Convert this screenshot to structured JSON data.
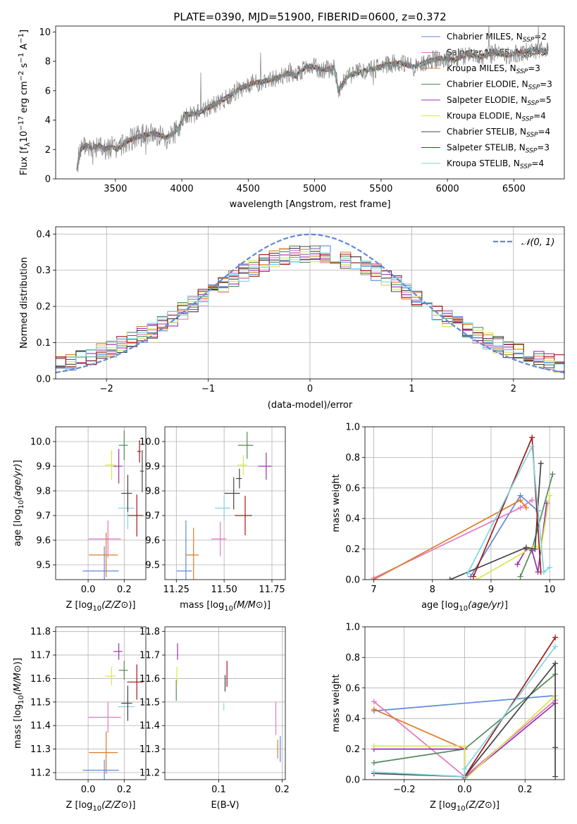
{
  "figure": {
    "title": "PLATE=0390, MJD=51900, FIBERID=0600, z=0.372"
  },
  "model_colors": {
    "Chabrier MILES": "#5f8ad7",
    "Salpeter MILES": "#e377c2",
    "Kroupa MILES": "#e07b25",
    "Chabrier ELODIE": "#548a5c",
    "Salpeter ELODIE": "#9b30b0",
    "Kroupa ELODIE": "#d8e650",
    "Chabrier STELIB": "#444444",
    "Salpeter STELIB": "#a01818",
    "Kroupa STELIB": "#7fd6e0",
    "data": "#808080",
    "normal": "#5f8ad7"
  },
  "chart_data": [
    {
      "type": "line",
      "panel": "spectrum",
      "xlabel": "wavelength [Angstrom, rest frame]",
      "ylabel": "Flux [f",
      "xlim": [
        3050,
        6880
      ],
      "ylim": [
        0,
        10.4
      ],
      "xticks": [
        "3500",
        "4000",
        "4500",
        "5000",
        "5500",
        "6000",
        "6500"
      ],
      "yticks": [
        "0",
        "2",
        "4",
        "6",
        "8",
        "10"
      ],
      "grid": false,
      "legend_position": "upper-right",
      "continuum_x": [
        3200,
        3230,
        3280,
        3320,
        3350,
        3380,
        3420,
        3470,
        3520,
        3570,
        3620,
        3680,
        3730,
        3780,
        3830,
        3880,
        3940,
        3980,
        4020,
        4080,
        4150,
        4230,
        4300,
        4380,
        4450,
        4530,
        4600,
        4700,
        4800,
        4860,
        4940,
        5000,
        5080,
        5150,
        5180,
        5250,
        5350,
        5450,
        5550,
        5650,
        5750,
        5850,
        5950,
        6050,
        6150,
        6250,
        6350,
        6450,
        6550,
        6650,
        6750
      ],
      "continuum_y": [
        0.05,
        1.9,
        2.3,
        2.1,
        2.2,
        2.3,
        2.0,
        2.2,
        2.0,
        2.5,
        2.7,
        2.9,
        3.0,
        3.1,
        3.0,
        2.8,
        3.1,
        3.5,
        4.4,
        4.4,
        4.6,
        5.0,
        5.3,
        5.8,
        6.2,
        6.5,
        6.6,
        6.8,
        7.2,
        7.0,
        7.7,
        7.6,
        7.4,
        7.6,
        6.0,
        7.0,
        7.3,
        7.5,
        7.8,
        7.9,
        7.6,
        8.0,
        8.2,
        8.1,
        8.5,
        8.3,
        8.6,
        8.4,
        8.6,
        8.8,
        8.7
      ],
      "series": [
        {
          "name": "Chabrier MILES",
          "nssp": "=2"
        },
        {
          "name": "Salpeter MILES",
          "nssp": "=3"
        },
        {
          "name": "Kroupa MILES",
          "nssp": "=3"
        },
        {
          "name": "Chabrier ELODIE",
          "nssp": "=3"
        },
        {
          "name": "Salpeter ELODIE",
          "nssp": "=5"
        },
        {
          "name": "Kroupa ELODIE",
          "nssp": "=4"
        },
        {
          "name": "Chabrier STELIB",
          "nssp": "=4"
        },
        {
          "name": "Salpeter STELIB",
          "nssp": "=3"
        },
        {
          "name": "Kroupa STELIB",
          "nssp": "=4"
        }
      ]
    },
    {
      "type": "histogram",
      "panel": "residuals",
      "xlabel": "(data-model)/error",
      "ylabel": "Normed distribution",
      "xlim": [
        -2.5,
        2.5
      ],
      "ylim": [
        0,
        0.42
      ],
      "xticks": [
        "−2",
        "−1",
        "0",
        "1",
        "2"
      ],
      "yticks": [
        "0.0",
        "0.1",
        "0.2",
        "0.3",
        "0.4"
      ],
      "grid": true,
      "legend_position": "upper-right",
      "curve_label": "𝒩(0, 1)",
      "bin_width": 0.1
    },
    {
      "type": "scatter",
      "panel": "age-vs-Z",
      "xlabel": "Z [log",
      "ylabel": "age  [log",
      "xlim": [
        -0.18,
        0.32
      ],
      "ylim": [
        9.44,
        10.06
      ],
      "xticks": [
        "0.0",
        "0.2"
      ],
      "yticks": [
        "9.5",
        "9.6",
        "9.7",
        "9.8",
        "9.9",
        "10.0"
      ],
      "grid": true,
      "points": [
        {
          "model": "Chabrier MILES",
          "x": 0.09,
          "xerr": 0.2,
          "y": 9.475,
          "yerr": 0.2
        },
        {
          "model": "Kroupa MILES",
          "x": 0.1,
          "xerr": 0.16,
          "y": 9.54,
          "yerr": 0.18
        },
        {
          "model": "Salpeter MILES",
          "x": 0.11,
          "xerr": 0.18,
          "y": 9.605,
          "yerr": 0.15
        },
        {
          "model": "Salpeter STELIB",
          "x": 0.27,
          "xerr": 0.09,
          "y": 9.7,
          "yerr": 0.17
        },
        {
          "model": "Kroupa STELIB",
          "x": 0.22,
          "xerr": 0.09,
          "y": 9.73,
          "yerr": 0.17
        },
        {
          "model": "Chabrier STELIB",
          "x": 0.22,
          "xerr": 0.06,
          "y": 9.79,
          "yerr": 0.15
        },
        {
          "model": "Kroupa ELODIE",
          "x": 0.13,
          "xerr": 0.06,
          "y": 9.905,
          "yerr": 0.12
        },
        {
          "model": "Salpeter ELODIE",
          "x": 0.17,
          "xerr": 0.05,
          "y": 9.9,
          "yerr": 0.14
        },
        {
          "model": "Chabrier ELODIE",
          "x": 0.2,
          "xerr": 0.05,
          "y": 9.985,
          "yerr": 0.12
        },
        {
          "model": "Salpeter STELIB",
          "x": 0.285,
          "xerr": 0.02,
          "y": 9.96,
          "yerr": 0.09
        },
        {
          "model": "Chabrier STELIB",
          "x": 0.3,
          "xerr": 0.02,
          "y": 9.88,
          "yerr": 0.17
        }
      ]
    },
    {
      "type": "scatter",
      "panel": "age-vs-mass",
      "xlabel": "mass [log",
      "ylabel": "",
      "xlim": [
        11.19,
        11.82
      ],
      "ylim": [
        9.44,
        10.06
      ],
      "xticks": [
        "11.25",
        "11.50",
        "11.75"
      ],
      "yticks": [
        "9.5",
        "9.6",
        "9.7",
        "9.8",
        "9.9",
        "10.0"
      ],
      "grid": true,
      "points": [
        {
          "model": "Chabrier MILES",
          "x": 11.3,
          "xerr": 0.08,
          "y": 9.475,
          "yerr": 0.41
        },
        {
          "model": "Kroupa MILES",
          "x": 11.34,
          "xerr": 0.07,
          "y": 9.54,
          "yerr": 0.22
        },
        {
          "model": "Salpeter MILES",
          "x": 11.48,
          "xerr": 0.08,
          "y": 9.605,
          "yerr": 0.14
        },
        {
          "model": "Salpeter STELIB",
          "x": 11.61,
          "xerr": 0.09,
          "y": 9.7,
          "yerr": 0.16
        },
        {
          "model": "Kroupa STELIB",
          "x": 11.5,
          "xerr": 0.08,
          "y": 9.73,
          "yerr": 0.1
        },
        {
          "model": "Chabrier STELIB",
          "x": 11.55,
          "xerr": 0.08,
          "y": 9.79,
          "yerr": 0.13
        },
        {
          "model": "Kroupa ELODIE",
          "x": 11.6,
          "xerr": 0.05,
          "y": 9.905,
          "yerr": 0.08
        },
        {
          "model": "Salpeter ELODIE",
          "x": 11.72,
          "xerr": 0.07,
          "y": 9.9,
          "yerr": 0.11
        },
        {
          "model": "Chabrier ELODIE",
          "x": 11.62,
          "xerr": 0.08,
          "y": 9.985,
          "yerr": 0.11
        },
        {
          "model": "Chabrier STELIB",
          "x": 11.58,
          "xerr": 0.03,
          "y": 9.85,
          "yerr": 0.08
        }
      ]
    },
    {
      "type": "line",
      "panel": "mass-weight-vs-age",
      "xlabel": "age  [log",
      "ylabel": "mass weight",
      "xlim": [
        6.85,
        10.25
      ],
      "ylim": [
        0,
        1
      ],
      "xticks": [
        "7",
        "8",
        "9",
        "10"
      ],
      "yticks": [
        "0.0",
        "0.2",
        "0.4",
        "0.6",
        "0.8",
        "1.0"
      ],
      "grid": true,
      "series": [
        {
          "name": "Chabrier MILES",
          "x": [
            8.65,
            9.5,
            9.8
          ],
          "y": [
            0.02,
            0.55,
            0.45
          ]
        },
        {
          "name": "Salpeter MILES",
          "x": [
            7.0,
            9.5,
            9.7
          ],
          "y": [
            0.01,
            0.47,
            0.52
          ]
        },
        {
          "name": "Kroupa MILES",
          "x": [
            7.0,
            9.5,
            9.6
          ],
          "y": [
            0.0,
            0.52,
            0.47
          ]
        },
        {
          "name": "Chabrier ELODIE",
          "x": [
            9.5,
            9.7,
            10.05
          ],
          "y": [
            0.02,
            0.2,
            0.69
          ]
        },
        {
          "name": "Salpeter ELODIE",
          "x": [
            9.45,
            9.6,
            9.7,
            9.8,
            9.95
          ],
          "y": [
            0.1,
            0.2,
            0.19,
            0.05,
            0.5
          ]
        },
        {
          "name": "Kroupa ELODIE",
          "x": [
            8.75,
            9.75,
            9.85,
            10.0
          ],
          "y": [
            0.0,
            0.22,
            0.2,
            0.55
          ]
        },
        {
          "name": "Chabrier STELIB",
          "x": [
            8.3,
            9.6,
            9.75,
            9.85
          ],
          "y": [
            0.0,
            0.21,
            0.2,
            0.76
          ]
        },
        {
          "name": "Salpeter STELIB",
          "x": [
            8.7,
            9.7,
            9.85
          ],
          "y": [
            0.02,
            0.93,
            0.05
          ]
        },
        {
          "name": "Kroupa STELIB",
          "x": [
            8.6,
            9.7,
            9.9,
            10.0
          ],
          "y": [
            0.04,
            0.87,
            0.05,
            0.08
          ]
        }
      ]
    },
    {
      "type": "scatter",
      "panel": "mass-vs-Z",
      "xlabel": "Z [log",
      "ylabel": "mass [log",
      "xlim": [
        -0.18,
        0.32
      ],
      "ylim": [
        11.17,
        11.82
      ],
      "xticks": [
        "0.0",
        "0.2"
      ],
      "yticks": [
        "11.2",
        "11.3",
        "11.4",
        "11.5",
        "11.6",
        "11.7",
        "11.8"
      ],
      "grid": true,
      "points": [
        {
          "model": "Chabrier MILES",
          "x": 0.09,
          "xerr": 0.2,
          "y": 11.21,
          "yerr": 0.09
        },
        {
          "model": "Kroupa MILES",
          "x": 0.1,
          "xerr": 0.16,
          "y": 11.285,
          "yerr": 0.18
        },
        {
          "model": "Salpeter MILES",
          "x": 0.11,
          "xerr": 0.18,
          "y": 11.435,
          "yerr": 0.13
        },
        {
          "model": "Kroupa STELIB",
          "x": 0.22,
          "xerr": 0.09,
          "y": 11.48,
          "yerr": 0.1
        },
        {
          "model": "Chabrier STELIB",
          "x": 0.22,
          "xerr": 0.06,
          "y": 11.495,
          "yerr": 0.15
        },
        {
          "model": "Salpeter STELIB",
          "x": 0.27,
          "xerr": 0.09,
          "y": 11.585,
          "yerr": 0.15
        },
        {
          "model": "Kroupa ELODIE",
          "x": 0.13,
          "xerr": 0.06,
          "y": 11.61,
          "yerr": 0.08
        },
        {
          "model": "Chabrier ELODIE",
          "x": 0.2,
          "xerr": 0.05,
          "y": 11.635,
          "yerr": 0.08
        },
        {
          "model": "Salpeter ELODIE",
          "x": 0.17,
          "xerr": 0.05,
          "y": 11.715,
          "yerr": 0.07
        }
      ]
    },
    {
      "type": "scatter",
      "panel": "mass-vs-EBV",
      "xlabel": "E(B-V)",
      "ylabel": "",
      "xlim": [
        0.015,
        0.205
      ],
      "ylim": [
        11.17,
        11.82
      ],
      "xticks": [
        "0.1",
        "0.2"
      ],
      "yticks": [
        "11.2",
        "11.3",
        "11.4",
        "11.5",
        "11.6",
        "11.7",
        "11.8"
      ],
      "grid": true,
      "points": [
        {
          "model": "Chabrier ELODIE",
          "x": 0.033,
          "y": 11.55,
          "yerr": 0.09
        },
        {
          "model": "Salpeter ELODIE",
          "x": 0.035,
          "y": 11.715,
          "yerr": 0.07
        },
        {
          "model": "Kroupa ELODIE",
          "x": 0.034,
          "y": 11.61,
          "yerr": 0.08
        },
        {
          "model": "Chabrier STELIB",
          "x": 0.11,
          "y": 11.58,
          "yerr": 0.07
        },
        {
          "model": "Salpeter STELIB",
          "x": 0.113,
          "y": 11.62,
          "yerr": 0.11
        },
        {
          "model": "Kroupa STELIB",
          "x": 0.108,
          "y": 11.48,
          "yerr": 0.03
        },
        {
          "model": "Chabrier MILES",
          "x": 0.197,
          "y": 11.3,
          "yerr": 0.11
        },
        {
          "model": "Salpeter MILES",
          "x": 0.19,
          "y": 11.43,
          "yerr": 0.14
        },
        {
          "model": "Kroupa MILES",
          "x": 0.193,
          "y": 11.3,
          "yerr": 0.08
        }
      ]
    },
    {
      "type": "line",
      "panel": "mass-weight-vs-Z",
      "xlabel": "Z [log",
      "ylabel": "mass weight",
      "xlim": [
        -0.33,
        0.33
      ],
      "ylim": [
        0,
        1
      ],
      "xticks": [
        "−0.2",
        "0.0",
        "0.2"
      ],
      "yticks": [
        "0.0",
        "0.2",
        "0.4",
        "0.6",
        "0.8",
        "1.0"
      ],
      "grid": true,
      "series": [
        {
          "name": "Chabrier MILES",
          "x": [
            -0.3,
            0.3
          ],
          "y": [
            0.45,
            0.55
          ]
        },
        {
          "name": "Salpeter MILES",
          "x": [
            -0.3,
            0.0,
            0.3
          ],
          "y": [
            0.51,
            0.02,
            0.52
          ]
        },
        {
          "name": "Kroupa MILES",
          "x": [
            -0.3,
            0.0,
            0.0
          ],
          "y": [
            0.46,
            0.2,
            0.01
          ]
        },
        {
          "name": "Chabrier ELODIE",
          "x": [
            -0.3,
            0.0,
            0.3
          ],
          "y": [
            0.11,
            0.2,
            0.69
          ]
        },
        {
          "name": "Salpeter ELODIE",
          "x": [
            -0.3,
            0.0,
            0.0,
            0.3
          ],
          "y": [
            0.2,
            0.2,
            0.01,
            0.5
          ]
        },
        {
          "name": "Kroupa ELODIE",
          "x": [
            -0.3,
            0.0,
            0.0,
            0.3
          ],
          "y": [
            0.22,
            0.22,
            0.0,
            0.55
          ]
        },
        {
          "name": "Chabrier STELIB",
          "x": [
            -0.3,
            0.0,
            0.3,
            0.3,
            0.3
          ],
          "y": [
            0.04,
            0.02,
            0.76,
            0.21,
            0.02
          ]
        },
        {
          "name": "Salpeter STELIB",
          "x": [
            0.0,
            0.3
          ],
          "y": [
            0.02,
            0.93
          ]
        },
        {
          "name": "Kroupa STELIB",
          "x": [
            -0.3,
            0.0,
            0.0,
            0.3
          ],
          "y": [
            0.05,
            0.02,
            0.07,
            0.87
          ]
        }
      ]
    }
  ]
}
